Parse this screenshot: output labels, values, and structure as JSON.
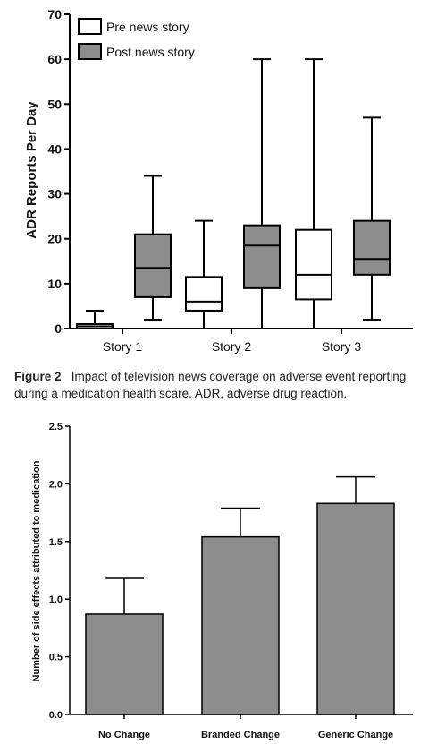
{
  "chart_data": [
    {
      "type": "box",
      "title": "",
      "xlabel": "",
      "ylabel": "ADR Reports Per Day",
      "ylim": [
        0,
        70
      ],
      "yticks": [
        0,
        10,
        20,
        30,
        40,
        50,
        60,
        70
      ],
      "categories": [
        "Story 1",
        "Story 2",
        "Story 3"
      ],
      "legend_position": "top-left",
      "grid": false,
      "series": [
        {
          "name": "Pre news story",
          "color": "#ffffff",
          "boxes": [
            {
              "category": "Story 1",
              "min": 0,
              "q1": 0,
              "median": 0.5,
              "q3": 1,
              "max": 4
            },
            {
              "category": "Story 2",
              "min": 0,
              "q1": 4,
              "median": 6,
              "q3": 11.5,
              "max": 24
            },
            {
              "category": "Story 3",
              "min": 0,
              "q1": 6.5,
              "median": 12,
              "q3": 22,
              "max": 60
            }
          ]
        },
        {
          "name": "Post news story",
          "color": "#8c8c8c",
          "boxes": [
            {
              "category": "Story 1",
              "min": 2,
              "q1": 7,
              "median": 13.5,
              "q3": 21,
              "max": 34
            },
            {
              "category": "Story 2",
              "min": 0,
              "q1": 9,
              "median": 18.5,
              "q3": 23,
              "max": 60
            },
            {
              "category": "Story 3",
              "min": 2,
              "q1": 12,
              "median": 15.5,
              "q3": 24,
              "max": 47
            }
          ]
        }
      ]
    },
    {
      "type": "bar",
      "title": "",
      "xlabel": "",
      "ylabel": "Number of side effects attributed to medication",
      "ylim": [
        0,
        2.5
      ],
      "yticks": [
        "0.0",
        "0.5",
        "1.0",
        "1.5",
        "2.0",
        "2.5"
      ],
      "categories": [
        "No Change",
        "Branded Change",
        "Generic Change"
      ],
      "values": [
        0.87,
        1.54,
        1.83
      ],
      "error_upper": [
        1.18,
        1.79,
        2.06
      ],
      "bar_color": "#8c8c8c",
      "grid": false
    }
  ],
  "caption": {
    "label": "Figure 2",
    "text": "Impact of television news coverage on adverse event reporting during a medication health scare. ADR, adverse drug reaction."
  }
}
